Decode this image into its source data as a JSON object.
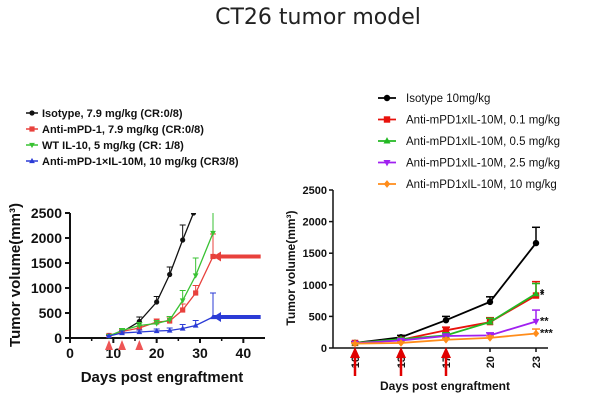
{
  "title": "CT26 tumor model",
  "chart_data": [
    {
      "type": "line",
      "xlabel": "Days post engraftment",
      "ylabel": "Tumor volume(mm³)",
      "xlim": [
        0,
        45
      ],
      "ylim": [
        0,
        2500
      ],
      "xticks": [
        "0",
        "10",
        "20",
        "30",
        "40"
      ],
      "yticks": [
        "0",
        "500",
        "1000",
        "1500",
        "2000",
        "2500"
      ],
      "legend_position": "top-left",
      "dosing_days": [
        9,
        12,
        16
      ],
      "series": [
        {
          "name": "Isotype, 7.9 mg/kg (CR:0/8)",
          "color": "#111111",
          "marker": "circle",
          "x": [
            9,
            12,
            16,
            20,
            23,
            26,
            28.5
          ],
          "y": [
            50,
            120,
            330,
            720,
            1270,
            1960,
            2500
          ],
          "err": [
            20,
            40,
            90,
            110,
            150,
            300,
            0
          ]
        },
        {
          "name": "Anti-mPD-1, 7.9 mg/kg (CR:0/8)",
          "color": "#e8413c",
          "marker": "square",
          "x": [
            9,
            12,
            16,
            20,
            23,
            26,
            29,
            33,
            44
          ],
          "y": [
            50,
            130,
            200,
            320,
            340,
            560,
            900,
            1630,
            1630
          ],
          "err": [
            15,
            30,
            40,
            60,
            80,
            120,
            150,
            450,
            0
          ]
        },
        {
          "name": "WT IL-10, 5 mg/kg (CR: 1/8)",
          "color": "#39c233",
          "marker": "triangle-down",
          "x": [
            9,
            12,
            16,
            20,
            23,
            26,
            29,
            33
          ],
          "y": [
            40,
            150,
            250,
            290,
            360,
            750,
            1250,
            2100
          ],
          "err": [
            15,
            40,
            60,
            60,
            70,
            200,
            350,
            500
          ]
        },
        {
          "name": "Anti-mPD-1×IL-10M, 10 mg/kg (CR3/8)",
          "color": "#2b3bd6",
          "marker": "triangle-up",
          "x": [
            9,
            12,
            16,
            20,
            23,
            26,
            29,
            33,
            44
          ],
          "y": [
            40,
            100,
            120,
            140,
            150,
            190,
            250,
            420,
            420
          ],
          "err": [
            10,
            40,
            40,
            40,
            50,
            80,
            100,
            480,
            0
          ]
        }
      ]
    },
    {
      "type": "line",
      "xlabel": "Days post engraftment",
      "ylabel": "Tumor volume(mm³)",
      "categories": [
        "10",
        "13",
        "17",
        "20",
        "23"
      ],
      "ylim": [
        0,
        2500
      ],
      "yticks": [
        "0",
        "500",
        "1000",
        "1500",
        "2000",
        "2500"
      ],
      "legend_position": "top",
      "dosing_categories": [
        "10",
        "13",
        "17"
      ],
      "series": [
        {
          "name": "Isotype 10mg/kg",
          "color": "#000000",
          "marker": "circle",
          "values": [
            80,
            170,
            440,
            730,
            1660
          ],
          "err": [
            20,
            30,
            60,
            80,
            250
          ],
          "sig": ""
        },
        {
          "name": "Anti-mPD1xIL-10M, 0.1 mg/kg",
          "color": "#e8120c",
          "marker": "square",
          "values": [
            80,
            130,
            280,
            410,
            830
          ],
          "err": [
            15,
            25,
            50,
            70,
            220
          ],
          "sig": "*"
        },
        {
          "name": "Anti-mPD1xIL-10M, 0.5 mg/kg",
          "color": "#22b822",
          "marker": "triangle-up",
          "values": [
            80,
            140,
            200,
            410,
            860
          ],
          "err": [
            15,
            20,
            40,
            60,
            160
          ],
          "sig": "*"
        },
        {
          "name": "Anti-mPD1xIL-10M, 2.5 mg/kg",
          "color": "#a020f0",
          "marker": "triangle-down",
          "values": [
            75,
            120,
            190,
            200,
            420
          ],
          "err": [
            15,
            20,
            30,
            40,
            180
          ],
          "sig": "**"
        },
        {
          "name": "Anti-mPD1xIL-10M, 10 mg/kg",
          "color": "#ff8c1a",
          "marker": "diamond",
          "values": [
            70,
            80,
            130,
            160,
            230
          ],
          "err": [
            10,
            15,
            25,
            30,
            70
          ],
          "sig": "***"
        }
      ]
    }
  ]
}
